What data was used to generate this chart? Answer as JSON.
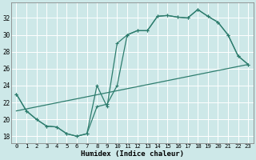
{
  "xlabel": "Humidex (Indice chaleur)",
  "bg_color": "#cde8e8",
  "grid_color": "#ffffff",
  "line_color": "#2e7d6e",
  "x_ticks": [
    0,
    1,
    2,
    3,
    4,
    5,
    6,
    7,
    8,
    9,
    10,
    11,
    12,
    13,
    14,
    15,
    16,
    17,
    18,
    19,
    20,
    21,
    22,
    23
  ],
  "y_ticks": [
    18,
    20,
    22,
    24,
    26,
    28,
    30,
    32
  ],
  "ylim": [
    17.2,
    33.8
  ],
  "xlim": [
    -0.5,
    23.5
  ],
  "line1_x": [
    0,
    1,
    2,
    3,
    4,
    5,
    6,
    7,
    8,
    9,
    10,
    11,
    12,
    13,
    14,
    15,
    16,
    17,
    18,
    19,
    20,
    21,
    22,
    23
  ],
  "line1_y": [
    23,
    21,
    20,
    19.2,
    19.1,
    18.3,
    18.0,
    18.3,
    24.0,
    21.5,
    29.0,
    30.0,
    30.5,
    30.5,
    32.2,
    32.3,
    32.1,
    32.0,
    33.0,
    32.2,
    31.5,
    30.0,
    27.5,
    26.5
  ],
  "line2_x": [
    0,
    1,
    2,
    3,
    4,
    5,
    6,
    7,
    8,
    9,
    10,
    11,
    12,
    13,
    14,
    15,
    16,
    17,
    18,
    19,
    20,
    21,
    22,
    23
  ],
  "line2_y": [
    23,
    21,
    20,
    19.2,
    19.1,
    18.3,
    18.0,
    18.3,
    21.5,
    21.8,
    24.0,
    30.0,
    30.5,
    30.5,
    32.2,
    32.3,
    32.1,
    32.0,
    33.0,
    32.2,
    31.5,
    30.0,
    27.5,
    26.5
  ],
  "line3_x": [
    0,
    23
  ],
  "line3_y": [
    21.0,
    26.5
  ]
}
